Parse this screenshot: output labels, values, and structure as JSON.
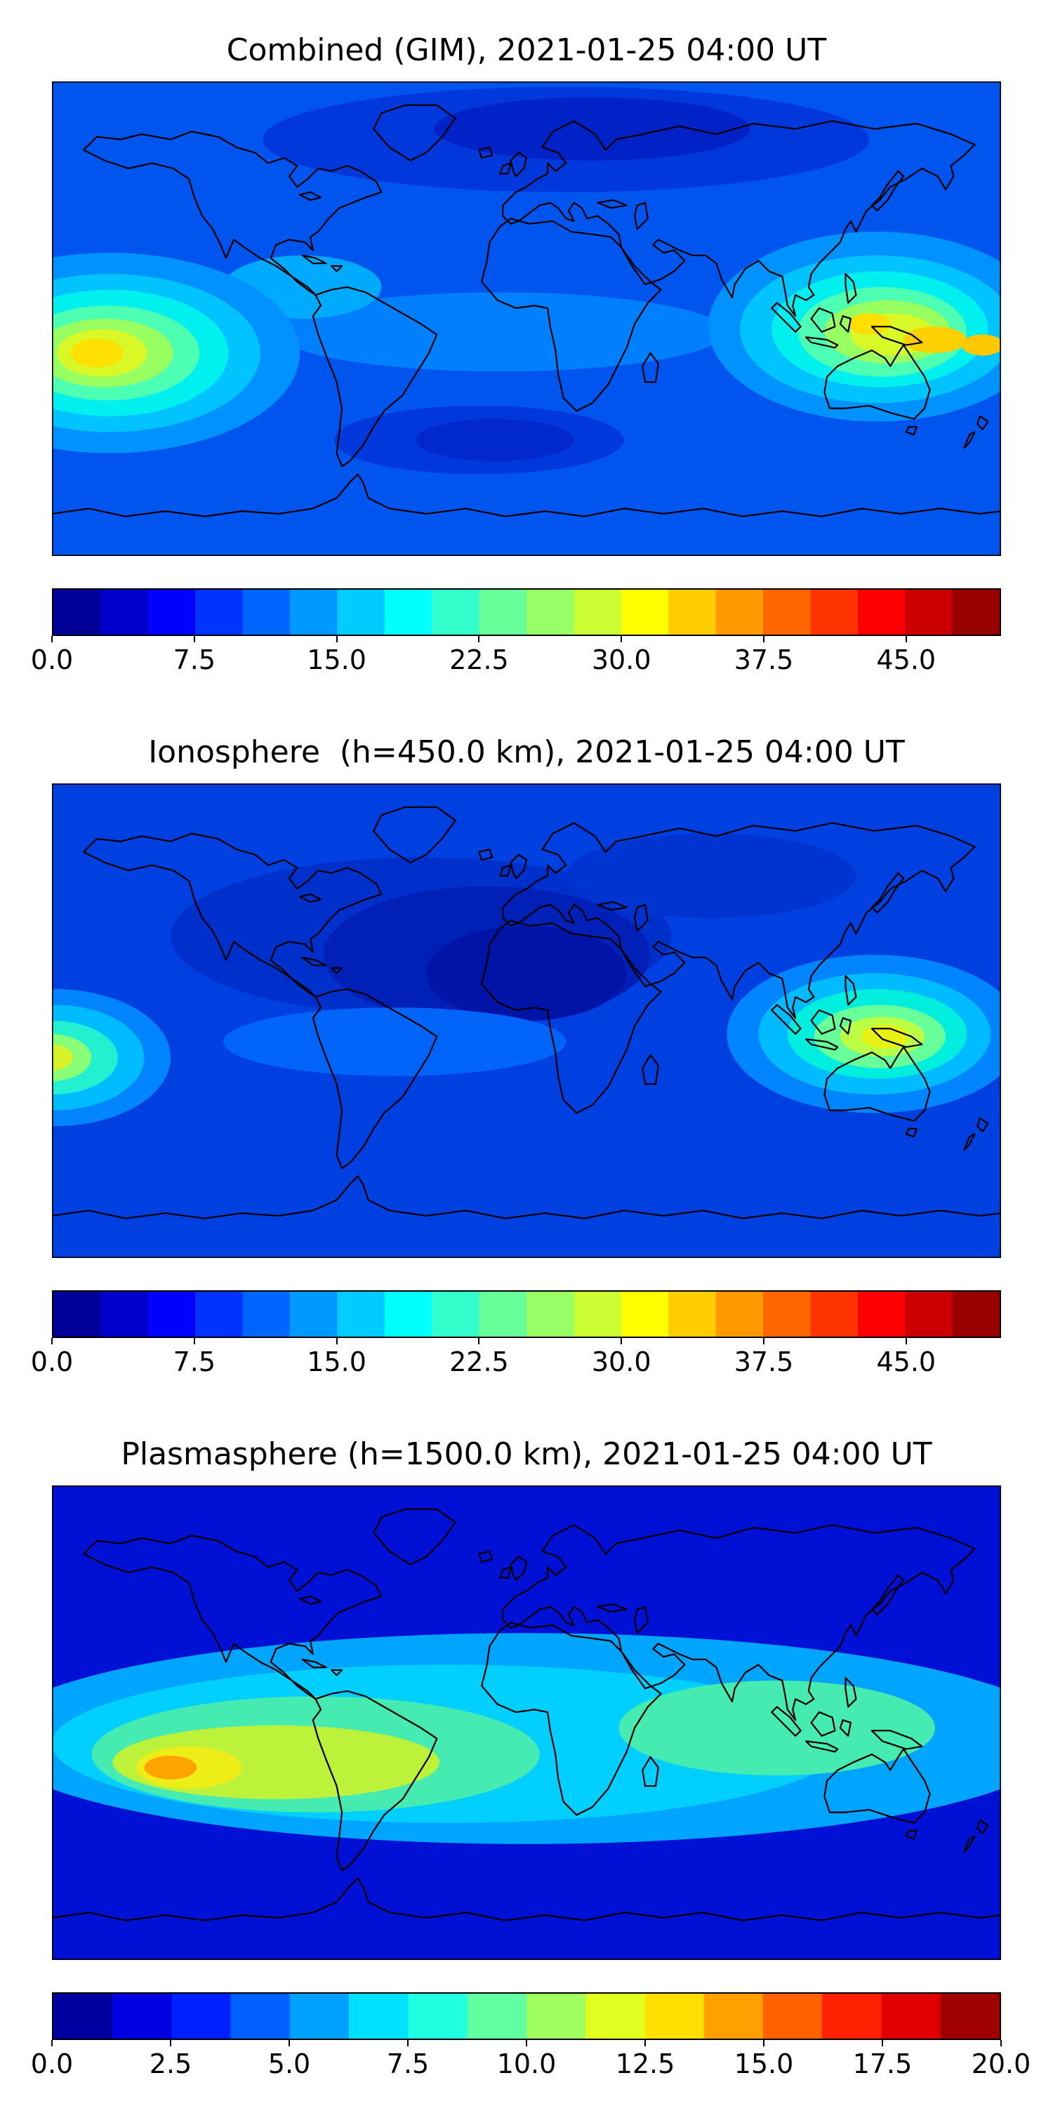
{
  "figure": {
    "background_color": "#ffffff",
    "panel_count": 3
  },
  "chart_data": [
    {
      "type": "heatmap",
      "title": "Combined (GIM), 2021-01-25 04:00 UT",
      "colormap": "jet",
      "projection": "equirectangular",
      "lon_range": [
        -180,
        180
      ],
      "lat_range": [
        -90,
        90
      ],
      "colorbar": {
        "vmin": 0,
        "vmax": 50,
        "tick_values": [
          0,
          7.5,
          15,
          22.5,
          30,
          37.5,
          45
        ],
        "tick_labels": [
          "0.0",
          "7.5",
          "15.0",
          "22.5",
          "30.0",
          "37.5",
          "45.0"
        ],
        "segment_colors": [
          "#000099",
          "#0000CC",
          "#0000FF",
          "#0033FF",
          "#0066FF",
          "#0099FF",
          "#00CCFF",
          "#00FFFF",
          "#33FFCC",
          "#66FF99",
          "#99FF66",
          "#CCFF33",
          "#FFFF00",
          "#FFCC00",
          "#FF9900",
          "#FF6600",
          "#FF3300",
          "#FF0000",
          "#CC0000",
          "#990000"
        ]
      },
      "map": {
        "background_color": "#0055EE",
        "background_approx_value": 9,
        "regions": [
          {
            "name": "north-polar-depletion",
            "lon": 15,
            "lat": 68,
            "rx": 115,
            "ry": 20,
            "color": "#0038DC",
            "approx_value": 6
          },
          {
            "name": "north-polar-depletion-core",
            "lon": 25,
            "lat": 72,
            "rx": 60,
            "ry": 12,
            "color": "#0022C6",
            "approx_value": 4
          },
          {
            "name": "south-atlantic-depletion",
            "lon": -18,
            "lat": -46,
            "rx": 55,
            "ry": 13,
            "color": "#0038DC",
            "approx_value": 6
          },
          {
            "name": "south-atlantic-depletion-core",
            "lon": -12,
            "lat": -46,
            "rx": 30,
            "ry": 8,
            "color": "#0028CC",
            "approx_value": 5
          },
          {
            "name": "equatorial-band",
            "lon": -10,
            "lat": -5,
            "rx": 85,
            "ry": 15,
            "color": "#0080FF",
            "approx_value": 13
          },
          {
            "name": "caribbean-enhancement",
            "lon": -85,
            "lat": 12,
            "rx": 30,
            "ry": 12,
            "color": "#00AAFF",
            "approx_value": 15
          },
          {
            "name": "east-pacific-hotspot-b1",
            "lon": -158,
            "lat": -13,
            "rx": 72,
            "ry": 38,
            "color": "#0092FF",
            "approx_value": 15
          },
          {
            "name": "east-pacific-hotspot-b2",
            "lon": -158,
            "lat": -13,
            "rx": 57,
            "ry": 30,
            "color": "#00C3FF",
            "approx_value": 18
          },
          {
            "name": "east-pacific-hotspot-b3",
            "lon": -158,
            "lat": -13,
            "rx": 45,
            "ry": 24,
            "color": "#00EFEF",
            "approx_value": 21
          },
          {
            "name": "east-pacific-hotspot-b4",
            "lon": -159,
            "lat": -13,
            "rx": 35,
            "ry": 18,
            "color": "#4DFFB3",
            "approx_value": 24
          },
          {
            "name": "east-pacific-hotspot-b5",
            "lon": -160,
            "lat": -13,
            "rx": 26,
            "ry": 13,
            "color": "#97FF60",
            "approx_value": 28
          },
          {
            "name": "east-pacific-hotspot-b6",
            "lon": -161,
            "lat": -13,
            "rx": 17,
            "ry": 9,
            "color": "#D8F827",
            "approx_value": 32
          },
          {
            "name": "east-pacific-hotspot-core",
            "lon": -163,
            "lat": -13,
            "rx": 10,
            "ry": 5.5,
            "color": "#FFE100",
            "approx_value": 36
          },
          {
            "name": "west-pacific-hotspot-b1",
            "lon": 133,
            "lat": -3,
            "rx": 64,
            "ry": 36,
            "color": "#0092FF",
            "approx_value": 15
          },
          {
            "name": "west-pacific-hotspot-b2",
            "lon": 133,
            "lat": -4,
            "rx": 52,
            "ry": 28,
            "color": "#00C3FF",
            "approx_value": 18
          },
          {
            "name": "west-pacific-hotspot-b3",
            "lon": 134,
            "lat": -4,
            "rx": 41,
            "ry": 22,
            "color": "#00EFEF",
            "approx_value": 21
          },
          {
            "name": "west-pacific-hotspot-b4",
            "lon": 135,
            "lat": -5,
            "rx": 32,
            "ry": 17,
            "color": "#4DFFB3",
            "approx_value": 25
          },
          {
            "name": "west-pacific-hotspot-b5",
            "lon": 137,
            "lat": -5,
            "rx": 24,
            "ry": 12,
            "color": "#97FF60",
            "approx_value": 29
          },
          {
            "name": "west-pacific-hotspot-b6",
            "lon": 139,
            "lat": -6,
            "rx": 16,
            "ry": 8,
            "color": "#D8F827",
            "approx_value": 33
          },
          {
            "name": "west-pacific-hotspot-core-a",
            "lon": 130,
            "lat": -2,
            "rx": 8,
            "ry": 4,
            "color": "#FFDF00",
            "approx_value": 36
          },
          {
            "name": "west-pacific-hotspot-core-b",
            "lon": 155,
            "lat": -8,
            "rx": 12,
            "ry": 5,
            "color": "#FFD000",
            "approx_value": 38
          },
          {
            "name": "west-pacific-hotspot-core-c",
            "lon": 173,
            "lat": -10,
            "rx": 8,
            "ry": 4,
            "color": "#FFC800",
            "approx_value": 39
          }
        ]
      }
    },
    {
      "type": "heatmap",
      "title": "Ionosphere  (h=450.0 km), 2021-01-25 04:00 UT",
      "colormap": "jet",
      "projection": "equirectangular",
      "lon_range": [
        -180,
        180
      ],
      "lat_range": [
        -90,
        90
      ],
      "colorbar": {
        "vmin": 0,
        "vmax": 50,
        "tick_values": [
          0,
          7.5,
          15,
          22.5,
          30,
          37.5,
          45
        ],
        "tick_labels": [
          "0.0",
          "7.5",
          "15.0",
          "22.5",
          "30.0",
          "37.5",
          "45.0"
        ],
        "segment_colors": [
          "#000099",
          "#0000CC",
          "#0000FF",
          "#0033FF",
          "#0066FF",
          "#0099FF",
          "#00CCFF",
          "#00FFFF",
          "#33FFCC",
          "#66FF99",
          "#99FF66",
          "#CCFF33",
          "#FFFF00",
          "#FFCC00",
          "#FF9900",
          "#FF6600",
          "#FF3300",
          "#FF0000",
          "#CC0000",
          "#990000"
        ]
      },
      "map": {
        "background_color": "#0040E0",
        "background_approx_value": 6,
        "regions": [
          {
            "name": "atlantic-depletion-outer",
            "lon": -40,
            "lat": 32,
            "rx": 95,
            "ry": 30,
            "color": "#0030CC",
            "approx_value": 4
          },
          {
            "name": "atlantic-depletion-mid",
            "lon": -15,
            "lat": 25,
            "rx": 62,
            "ry": 26,
            "color": "#0020B8",
            "approx_value": 3
          },
          {
            "name": "africa-depletion-core",
            "lon": 0,
            "lat": 18,
            "rx": 38,
            "ry": 18,
            "color": "#0014A8",
            "approx_value": 2
          },
          {
            "name": "north-asia-depletion",
            "lon": 70,
            "lat": 55,
            "rx": 55,
            "ry": 16,
            "color": "#0034D0",
            "approx_value": 4.5
          },
          {
            "name": "equatorial-band",
            "lon": -50,
            "lat": -8,
            "rx": 65,
            "ry": 13,
            "color": "#0064F8",
            "approx_value": 9
          },
          {
            "name": "west-pacific-hotspot-b1",
            "lon": 132,
            "lat": -5,
            "rx": 56,
            "ry": 30,
            "color": "#0085FF",
            "approx_value": 12
          },
          {
            "name": "west-pacific-hotspot-b2",
            "lon": 132,
            "lat": -5,
            "rx": 44,
            "ry": 23,
            "color": "#00BBFF",
            "approx_value": 15
          },
          {
            "name": "west-pacific-hotspot-b3",
            "lon": 133,
            "lat": -5,
            "rx": 34,
            "ry": 17,
            "color": "#00EEDD",
            "approx_value": 18
          },
          {
            "name": "west-pacific-hotspot-b4",
            "lon": 134,
            "lat": -6,
            "rx": 25,
            "ry": 12,
            "color": "#66FF99",
            "approx_value": 22
          },
          {
            "name": "west-pacific-hotspot-b5",
            "lon": 135,
            "lat": -6,
            "rx": 16,
            "ry": 7.5,
            "color": "#BBFF44",
            "approx_value": 26
          },
          {
            "name": "west-pacific-hotspot-core",
            "lon": 136,
            "lat": -6,
            "rx": 9,
            "ry": 4.5,
            "color": "#E8F214",
            "approx_value": 29
          },
          {
            "name": "dateline-hotspot-b1",
            "lon": -179,
            "lat": -14,
            "rx": 44,
            "ry": 26,
            "color": "#0085FF",
            "approx_value": 12
          },
          {
            "name": "dateline-hotspot-b2",
            "lon": -179,
            "lat": -14,
            "rx": 34,
            "ry": 20,
            "color": "#00BBFF",
            "approx_value": 15
          },
          {
            "name": "dateline-hotspot-b3",
            "lon": -180,
            "lat": -14,
            "rx": 25,
            "ry": 14,
            "color": "#22F0D0",
            "approx_value": 18
          },
          {
            "name": "dateline-hotspot-b4",
            "lon": -181,
            "lat": -14,
            "rx": 16,
            "ry": 9,
            "color": "#88FF77",
            "approx_value": 22
          },
          {
            "name": "dateline-hotspot-core",
            "lon": -181,
            "lat": -14,
            "rx": 9,
            "ry": 5,
            "color": "#D8F228",
            "approx_value": 26
          }
        ]
      }
    },
    {
      "type": "heatmap",
      "title": "Plasmasphere (h=1500.0 km), 2021-01-25 04:00 UT",
      "colormap": "jet",
      "projection": "equirectangular",
      "lon_range": [
        -180,
        180
      ],
      "lat_range": [
        -90,
        90
      ],
      "colorbar": {
        "vmin": 0,
        "vmax": 20,
        "tick_values": [
          0,
          2.5,
          5,
          7.5,
          10,
          12.5,
          15,
          17.5,
          20
        ],
        "tick_labels": [
          "0.0",
          "2.5",
          "5.0",
          "7.5",
          "10.0",
          "12.5",
          "15.0",
          "17.5",
          "20.0"
        ],
        "segment_colors": [
          "#0000A0",
          "#0000E0",
          "#0020FF",
          "#0060FF",
          "#00A0FF",
          "#00E0FF",
          "#20FFE0",
          "#60FFA0",
          "#A0FF60",
          "#E0FF20",
          "#FFE000",
          "#FFA000",
          "#FF6000",
          "#FF2000",
          "#E00000",
          "#A00000"
        ]
      },
      "map": {
        "background_color": "#0010D4",
        "background_approx_value": 2,
        "regions": [
          {
            "name": "global-cyan-band",
            "lon": 0,
            "lat": -6,
            "rx": 205,
            "ry": 40,
            "color": "#00A5FF",
            "approx_value": 5
          },
          {
            "name": "cyan-band-inner",
            "lon": -30,
            "lat": -8,
            "rx": 150,
            "ry": 30,
            "color": "#00CFFF",
            "approx_value": 6.5
          },
          {
            "name": "green-region-americas",
            "lon": -80,
            "lat": -12,
            "rx": 85,
            "ry": 22,
            "color": "#45EBB0",
            "approx_value": 8.5
          },
          {
            "name": "green-region-asia",
            "lon": 95,
            "lat": -2,
            "rx": 60,
            "ry": 18,
            "color": "#45EBB0",
            "approx_value": 8.5
          },
          {
            "name": "yellow-green-region",
            "lon": -95,
            "lat": -15,
            "rx": 62,
            "ry": 14,
            "color": "#BCF23A",
            "approx_value": 11
          },
          {
            "name": "yellow-core",
            "lon": -128,
            "lat": -17,
            "rx": 20,
            "ry": 8,
            "color": "#EDED18",
            "approx_value": 13
          },
          {
            "name": "orange-core",
            "lon": -135,
            "lat": -17,
            "rx": 10,
            "ry": 4.5,
            "color": "#FFA400",
            "approx_value": 15
          }
        ]
      }
    }
  ]
}
